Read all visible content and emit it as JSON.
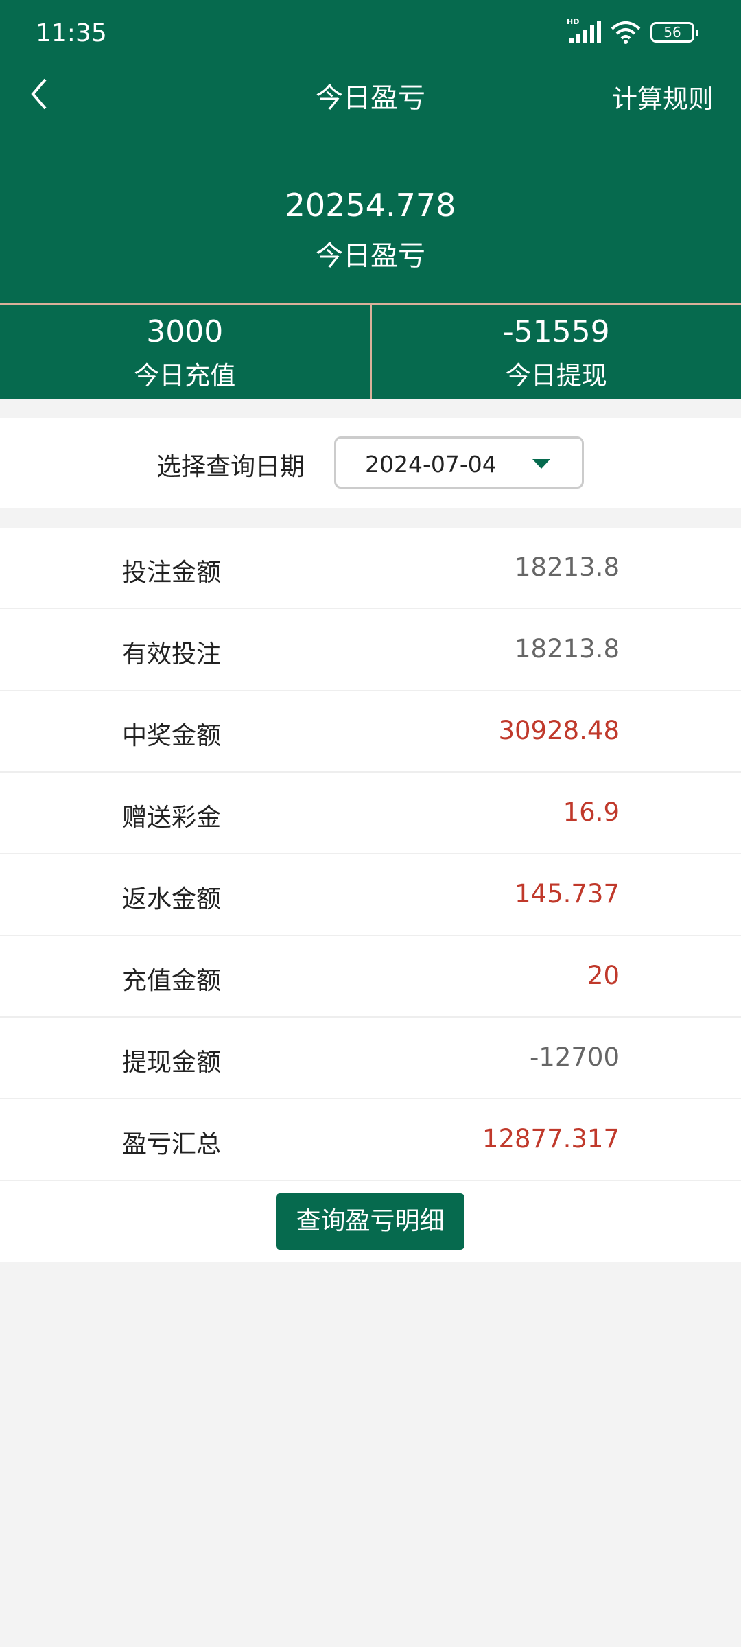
{
  "status_bar": {
    "time": "11:35",
    "network": "HD",
    "battery": "56"
  },
  "nav": {
    "title": "今日盈亏",
    "rules_label": "计算规则"
  },
  "summary": {
    "value": "20254.778",
    "label": "今日盈亏"
  },
  "stats": [
    {
      "value": "3000",
      "label": "今日充值"
    },
    {
      "value": "-51559",
      "label": "今日提现"
    }
  ],
  "date_filter": {
    "label": "选择查询日期",
    "value": "2024-07-04"
  },
  "rows": [
    {
      "label": "投注金额",
      "value": "18213.8",
      "color": "gray"
    },
    {
      "label": "有效投注",
      "value": "18213.8",
      "color": "gray"
    },
    {
      "label": "中奖金额",
      "value": "30928.48",
      "color": "red"
    },
    {
      "label": "赠送彩金",
      "value": "16.9",
      "color": "red"
    },
    {
      "label": "返水金额",
      "value": "145.737",
      "color": "red"
    },
    {
      "label": "充值金额",
      "value": "20",
      "color": "red"
    },
    {
      "label": "提现金额",
      "value": "-12700",
      "color": "gray"
    },
    {
      "label": "盈亏汇总",
      "value": "12877.317",
      "color": "red"
    }
  ],
  "detail_button": "查询盈亏明细",
  "colors": {
    "brand": "#066a4e",
    "positive": "#c0392b",
    "neutral": "#666666"
  }
}
